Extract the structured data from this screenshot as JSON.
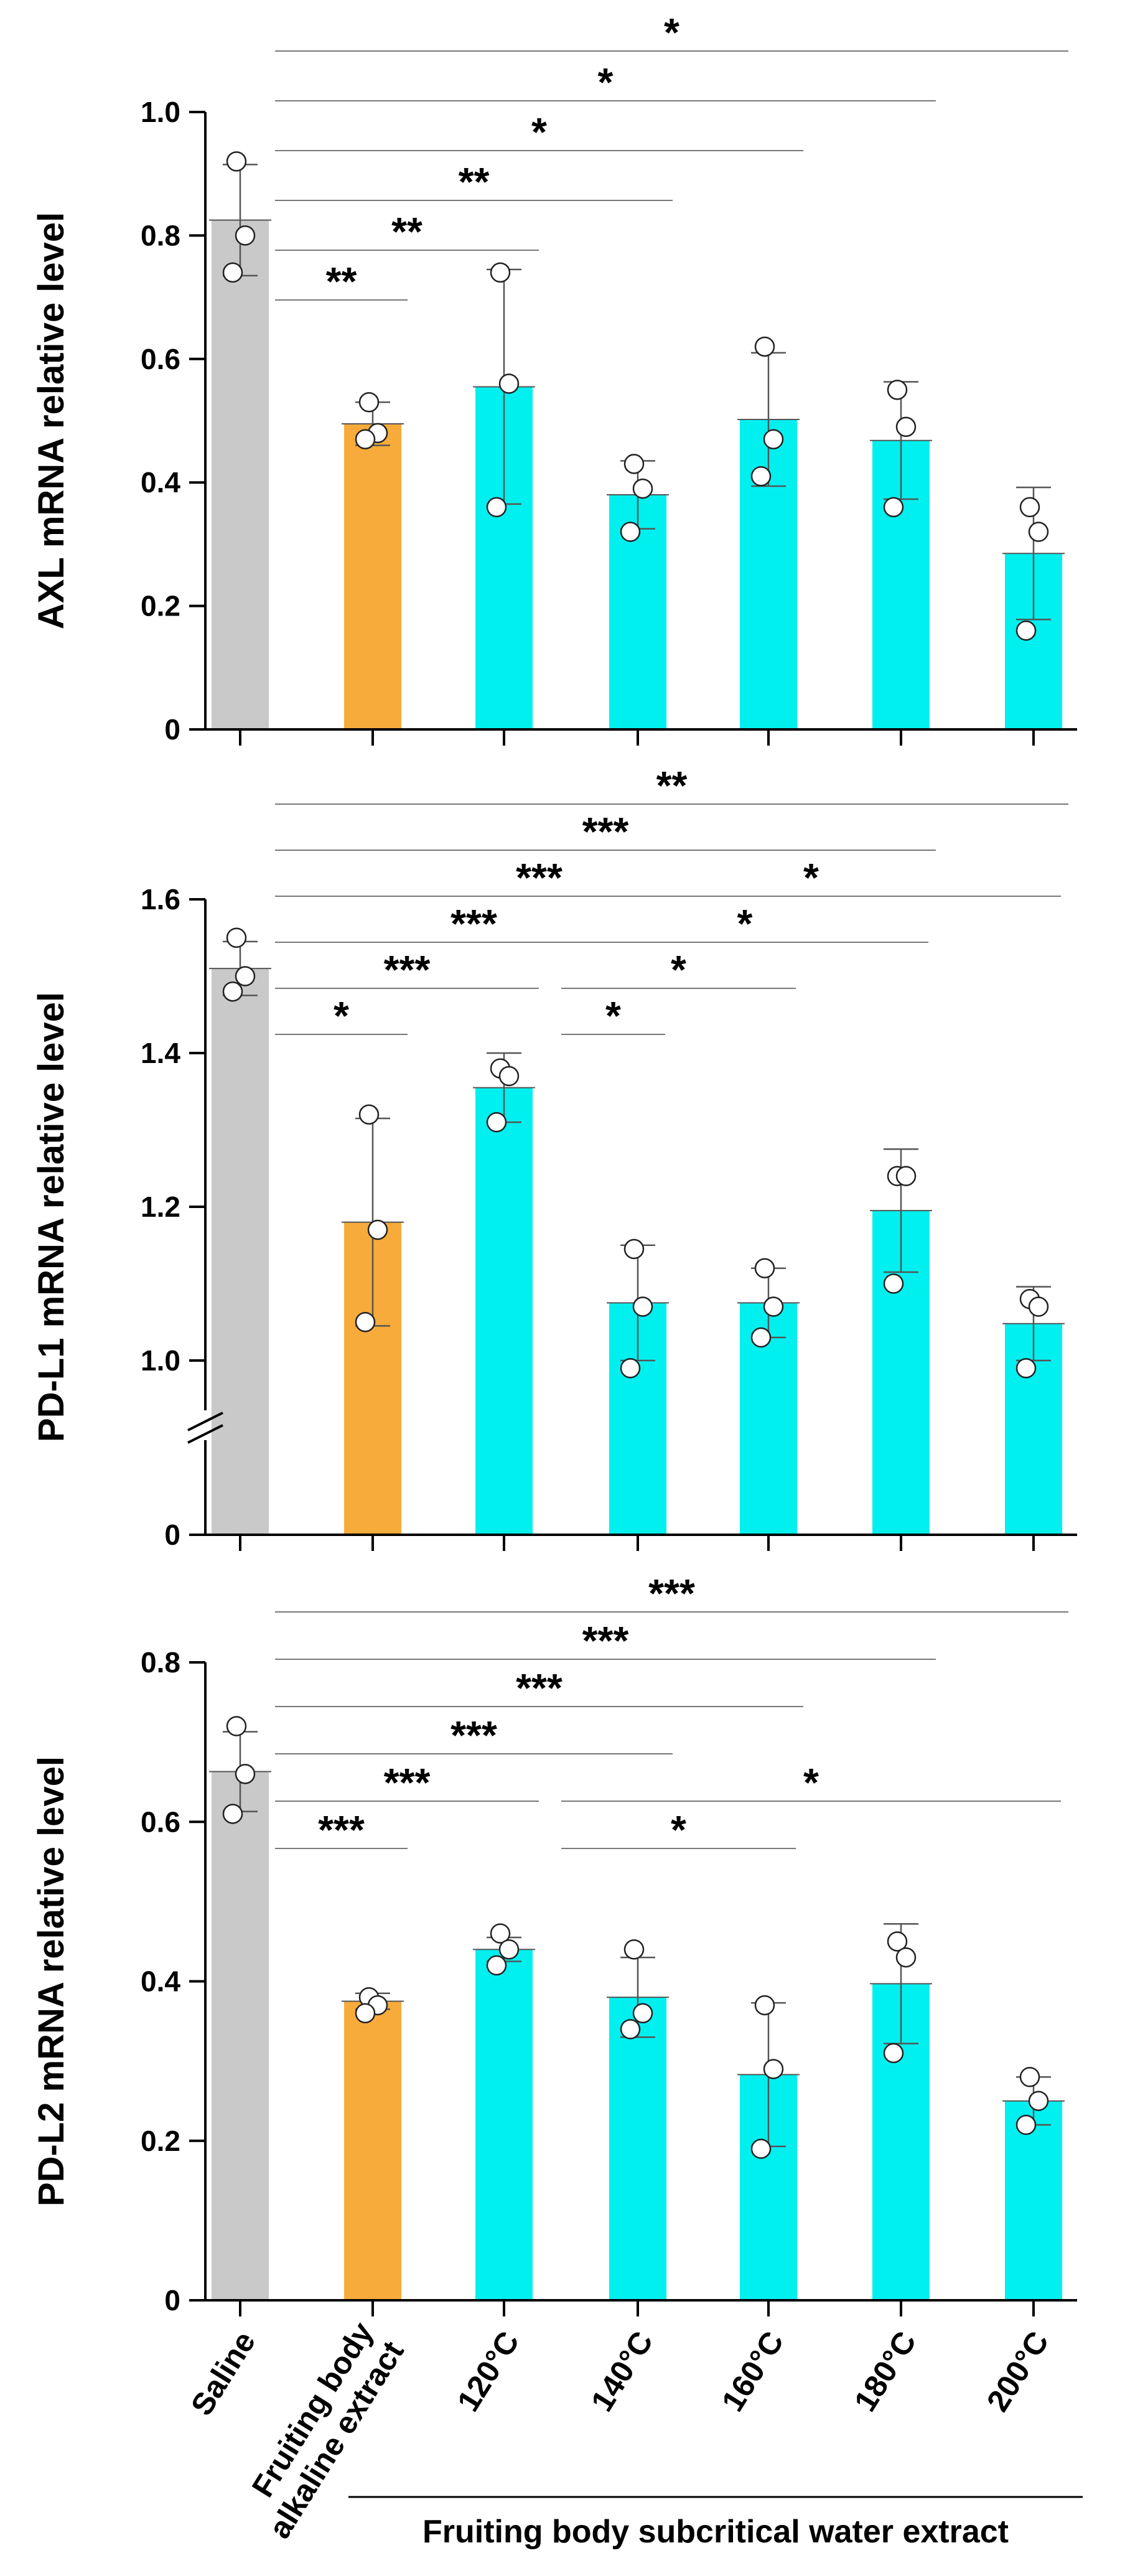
{
  "chart_data": [
    {
      "type": "bar",
      "ylabel": "AXL mRNA relative level",
      "ylim": [
        0,
        1.0
      ],
      "yticks": [
        {
          "value": 0,
          "label": "0"
        },
        {
          "value": 0.2,
          "label": "0.2"
        },
        {
          "value": 0.4,
          "label": "0.4"
        },
        {
          "value": 0.6,
          "label": "0.6"
        },
        {
          "value": 0.8,
          "label": "0.8"
        },
        {
          "value": 1.0,
          "label": "1.0"
        }
      ],
      "axis_break": false,
      "values": [
        0.825,
        0.495,
        0.555,
        0.38,
        0.502,
        0.468,
        0.285
      ],
      "sd": [
        0.09,
        0.035,
        0.19,
        0.055,
        0.108,
        0.095,
        0.107
      ],
      "points": [
        [
          0.92,
          0.8,
          0.74
        ],
        [
          0.53,
          0.48,
          0.47
        ],
        [
          0.74,
          0.56,
          0.36
        ],
        [
          0.43,
          0.39,
          0.32
        ],
        [
          0.62,
          0.47,
          0.41
        ],
        [
          0.55,
          0.49,
          0.36
        ],
        [
          0.36,
          0.32,
          0.16
        ]
      ],
      "comparisons": [
        {
          "from": 0,
          "to": 1,
          "label": "**"
        },
        {
          "from": 0,
          "to": 2,
          "label": "**"
        },
        {
          "from": 0,
          "to": 3,
          "label": "**"
        },
        {
          "from": 0,
          "to": 4,
          "label": "*"
        },
        {
          "from": 0,
          "to": 5,
          "label": "*"
        },
        {
          "from": 0,
          "to": 6,
          "label": "*"
        }
      ]
    },
    {
      "type": "bar",
      "ylabel": "PD-L1 mRNA relative level",
      "ylim": [
        1.0,
        1.6
      ],
      "yticks": [
        {
          "value": 1.0,
          "label": "1.0"
        },
        {
          "value": 1.2,
          "label": "1.2"
        },
        {
          "value": 1.4,
          "label": "1.4"
        },
        {
          "value": 1.6,
          "label": "1.6"
        }
      ],
      "axis_break": true,
      "break_zero_label": "0",
      "values": [
        1.51,
        1.18,
        1.355,
        1.075,
        1.075,
        1.195,
        1.048
      ],
      "sd": [
        0.035,
        0.135,
        0.045,
        0.075,
        0.045,
        0.08,
        0.048
      ],
      "points": [
        [
          1.55,
          1.5,
          1.48
        ],
        [
          1.32,
          1.17,
          1.05
        ],
        [
          1.38,
          1.37,
          1.31
        ],
        [
          1.145,
          1.07,
          0.99
        ],
        [
          1.12,
          1.07,
          1.03
        ],
        [
          1.24,
          1.24,
          1.1
        ],
        [
          1.08,
          1.07,
          0.99
        ]
      ],
      "comparisons": [
        {
          "from": 0,
          "to": 1,
          "label": "*"
        },
        {
          "from": 0,
          "to": 2,
          "label": "***"
        },
        {
          "from": 0,
          "to": 3,
          "label": "***"
        },
        {
          "from": 0,
          "to": 4,
          "label": "***"
        },
        {
          "from": 0,
          "to": 5,
          "label": "***"
        },
        {
          "from": 0,
          "to": 6,
          "label": "**"
        },
        {
          "from": 2,
          "to": 3,
          "label": "*"
        },
        {
          "from": 2,
          "to": 4,
          "label": "*"
        },
        {
          "from": 2,
          "to": 5,
          "label": "*"
        },
        {
          "from": 2,
          "to": 6,
          "label": "*"
        }
      ]
    },
    {
      "type": "bar",
      "ylabel": "PD-L2 mRNA relative level",
      "ylim": [
        0,
        0.8
      ],
      "yticks": [
        {
          "value": 0,
          "label": "0"
        },
        {
          "value": 0.2,
          "label": "0.2"
        },
        {
          "value": 0.4,
          "label": "0.4"
        },
        {
          "value": 0.6,
          "label": "0.6"
        },
        {
          "value": 0.8,
          "label": "0.8"
        }
      ],
      "axis_break": false,
      "values": [
        0.663,
        0.375,
        0.44,
        0.38,
        0.283,
        0.397,
        0.25
      ],
      "sd": [
        0.05,
        0.01,
        0.015,
        0.05,
        0.09,
        0.075,
        0.03
      ],
      "points": [
        [
          0.72,
          0.66,
          0.61
        ],
        [
          0.38,
          0.37,
          0.36
        ],
        [
          0.46,
          0.44,
          0.42
        ],
        [
          0.44,
          0.36,
          0.34
        ],
        [
          0.37,
          0.29,
          0.19
        ],
        [
          0.45,
          0.43,
          0.31
        ],
        [
          0.28,
          0.25,
          0.22
        ]
      ],
      "comparisons": [
        {
          "from": 0,
          "to": 1,
          "label": "***"
        },
        {
          "from": 0,
          "to": 2,
          "label": "***"
        },
        {
          "from": 0,
          "to": 3,
          "label": "***"
        },
        {
          "from": 0,
          "to": 4,
          "label": "***"
        },
        {
          "from": 0,
          "to": 5,
          "label": "***"
        },
        {
          "from": 0,
          "to": 6,
          "label": "***"
        },
        {
          "from": 2,
          "to": 4,
          "label": "*"
        },
        {
          "from": 2,
          "to": 6,
          "label": "*"
        }
      ]
    }
  ],
  "categories": [
    "Saline",
    "Fruiting body alkaline extract",
    "120°C",
    "140°C",
    "160°C",
    "180°C",
    "200°C"
  ],
  "category_lines": [
    [
      "Saline"
    ],
    [
      "Fruiting body",
      "alkaline extract"
    ],
    [
      "120°C"
    ],
    [
      "140°C"
    ],
    [
      "160°C"
    ],
    [
      "180°C"
    ],
    [
      "200°C"
    ]
  ],
  "group_label": "Fruiting body subcritical water extract",
  "colors": {
    "saline": "#c9c9c9",
    "alkaline": "#f7ab3a",
    "subcritical": "#00f0f0",
    "axis": "#000000",
    "bracket": "#777777",
    "point_fill": "#ffffff"
  }
}
